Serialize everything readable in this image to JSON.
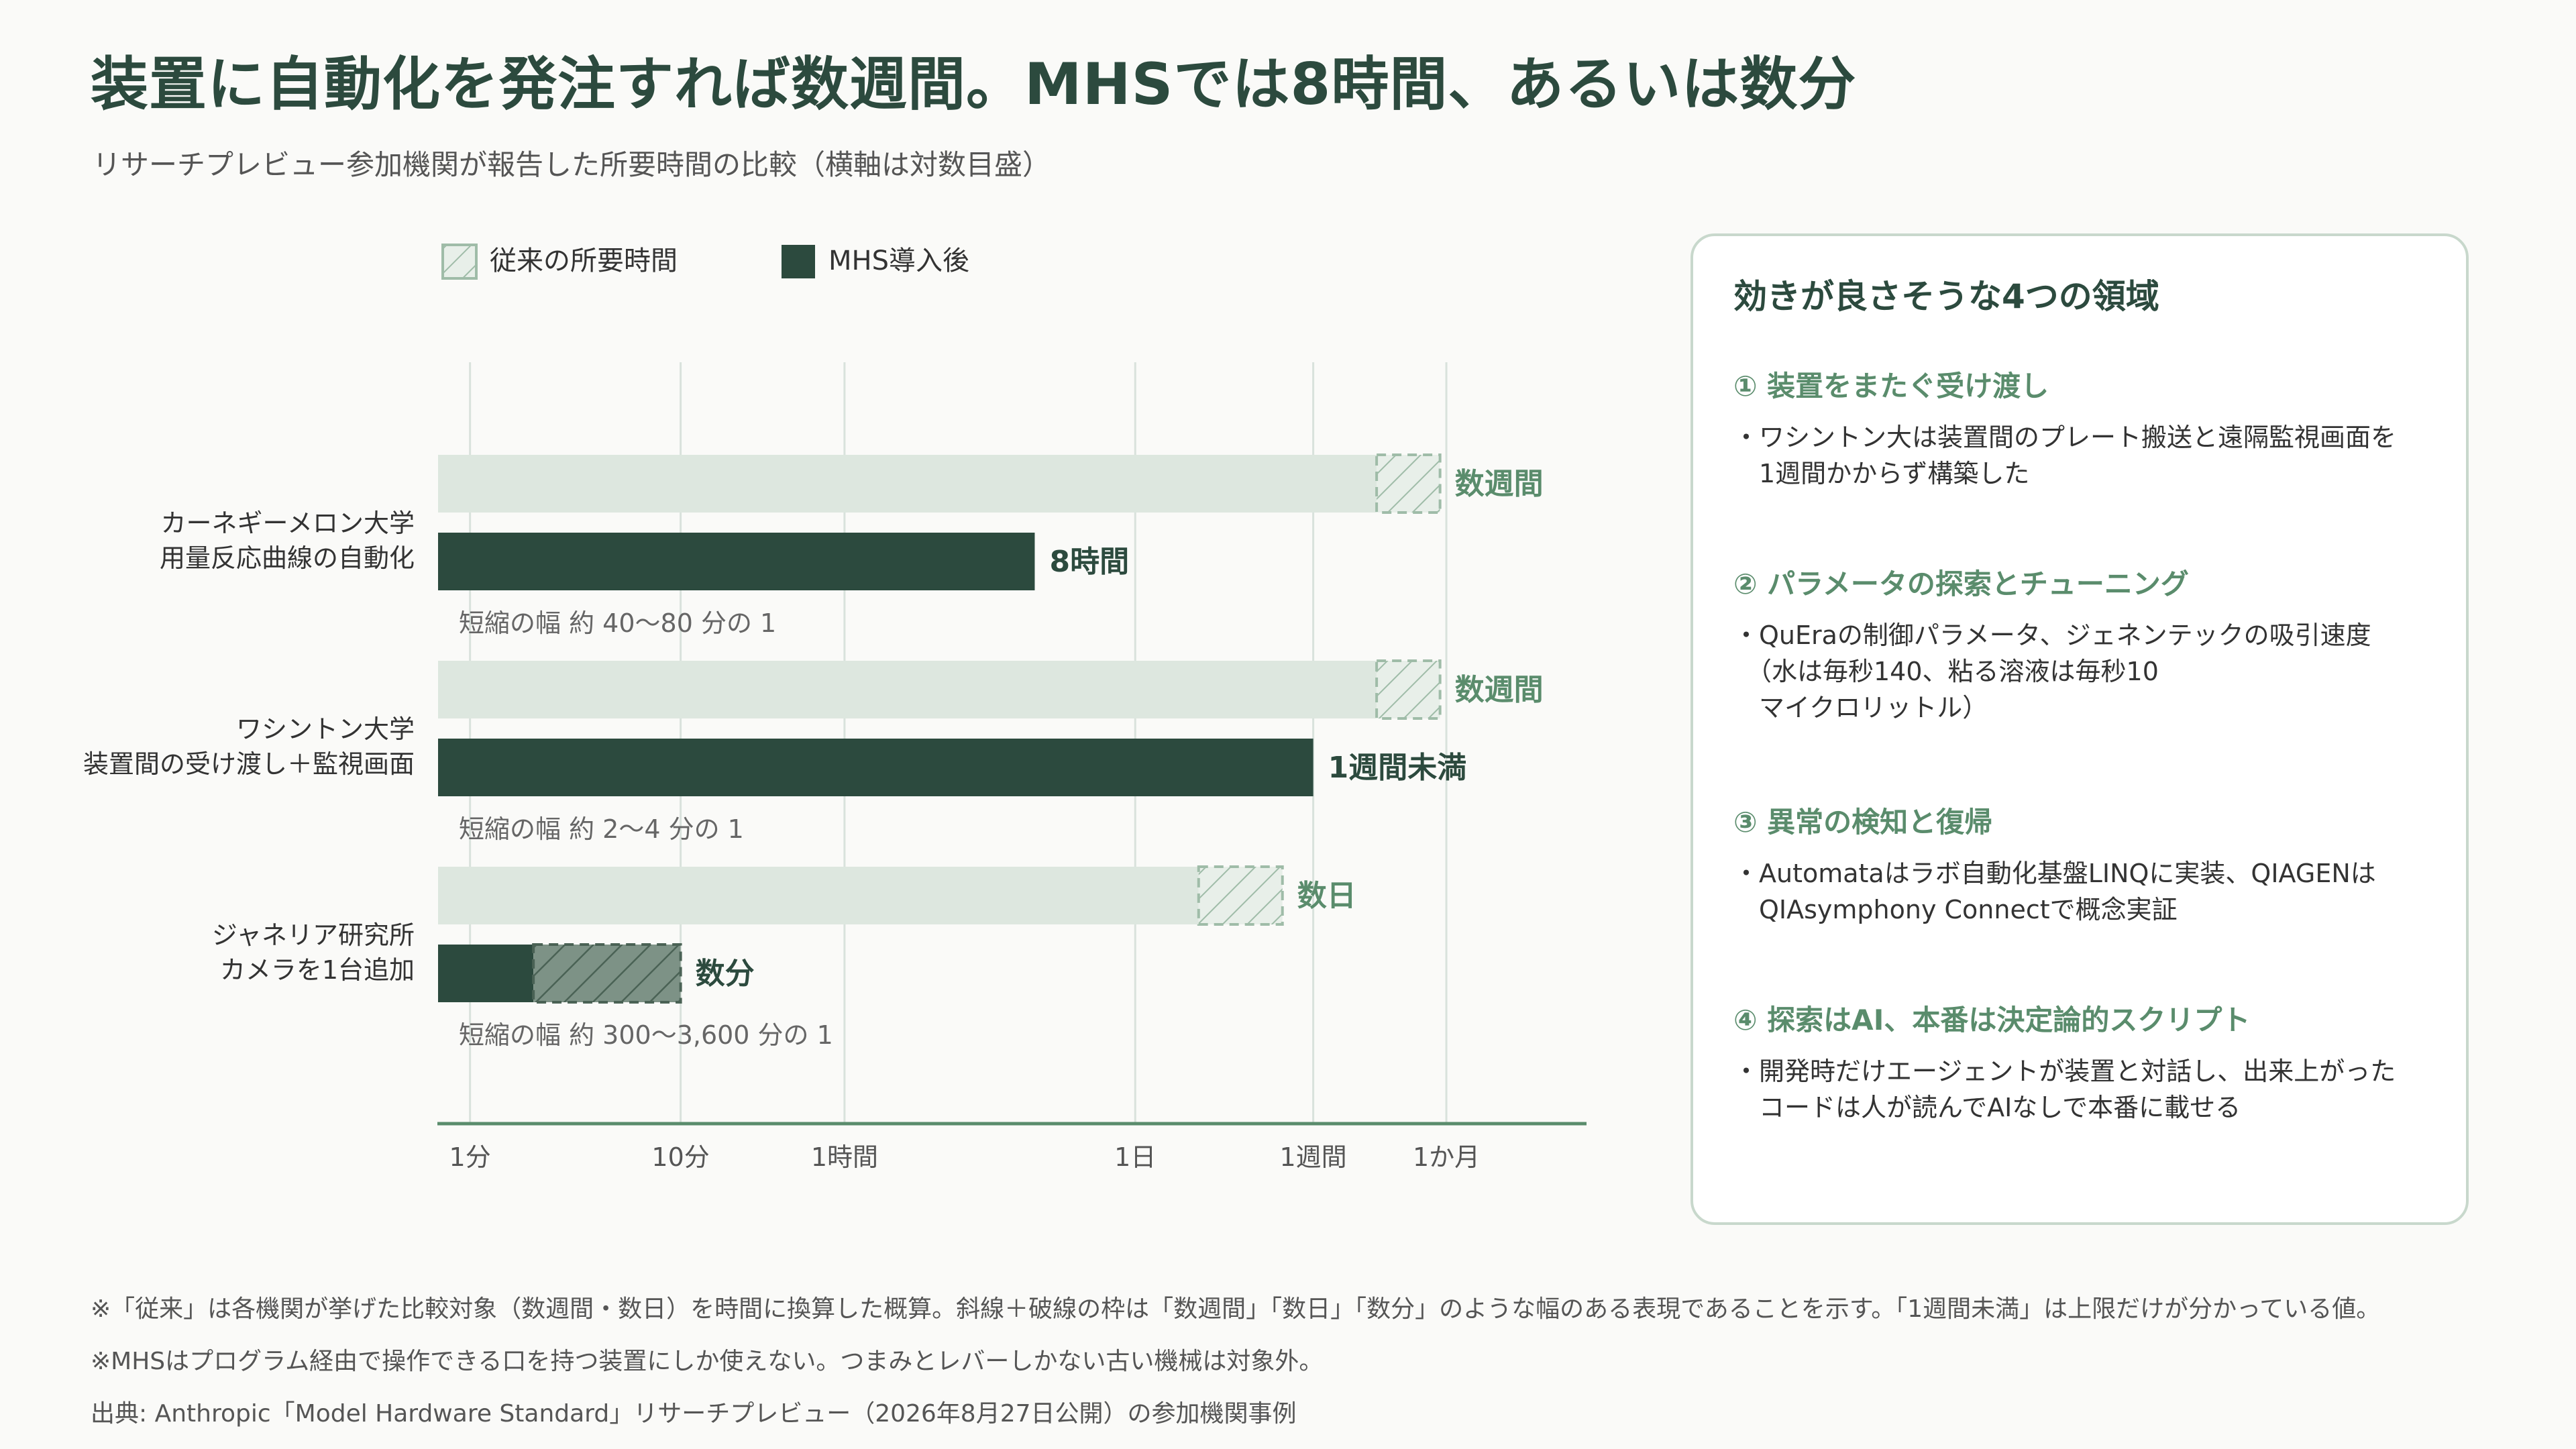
{
  "title": "装置に自動化を発注すれば数週間。MHSでは8時間、あるいは数分",
  "subtitle": "リサーチプレビュー参加機関が報告した所要時間の比較（横軸は対数目盛）",
  "chart_data": {
    "type": "bar",
    "orientation": "horizontal",
    "x_scale": "log",
    "x_unit": "minutes",
    "xlim": [
      0.7,
      200000
    ],
    "grid": true,
    "legend_position": "top-left",
    "legend": {
      "traditional": "従来の所要時間",
      "mhs": "MHS導入後"
    },
    "x_ticks": [
      {
        "label": "1分",
        "value": 1
      },
      {
        "label": "10分",
        "value": 10
      },
      {
        "label": "1時間",
        "value": 60
      },
      {
        "label": "1日",
        "value": 1440
      },
      {
        "label": "1週間",
        "value": 10080
      },
      {
        "label": "1か月",
        "value": 43200
      }
    ],
    "categories": [
      {
        "label_line1": "カーネギーメロン大学",
        "label_line2": "用量反応曲線の自動化",
        "traditional": {
          "min": 20160,
          "max": 40320,
          "label": "数週間"
        },
        "mhs": {
          "value": 480,
          "label": "8時間"
        },
        "reduction": "短縮の幅 約 40〜80 分の 1"
      },
      {
        "label_line1": "ワシントン大学",
        "label_line2": "装置間の受け渡し＋監視画面",
        "traditional": {
          "min": 20160,
          "max": 40320,
          "label": "数週間"
        },
        "mhs": {
          "value": 10080,
          "label": "1週間未満"
        },
        "reduction": "短縮の幅 約 2〜4 分の 1"
      },
      {
        "label_line1": "ジャネリア研究所",
        "label_line2": "カメラを1台追加",
        "traditional": {
          "min": 2880,
          "max": 7200,
          "label": "数日"
        },
        "mhs": {
          "min": 2,
          "max": 10,
          "label": "数分"
        },
        "reduction": "短縮の幅 約 300〜3,600 分の 1"
      }
    ]
  },
  "colors": {
    "title": "#2c4a3e",
    "mhs_bar": "#2c4a3e",
    "traditional_bar": "#dde7df",
    "accent_green": "#5a8c6c",
    "axis": "#5a8c6c",
    "grid": "#d9e2dc"
  },
  "panel": {
    "title": "効きが良さそうな4つの領域",
    "areas": [
      {
        "heading": "① 装置をまたぐ受け渡し",
        "bullet": "・ワシントン大は装置間のプレート搬送と遠隔監視画面を\n　1週間かからず構築した"
      },
      {
        "heading": "② パラメータの探索とチューニング",
        "bullet": "・QuEraの制御パラメータ、ジェネンテックの吸引速度\n　（水は毎秒140、粘る溶液は毎秒10\n　マイクロリットル）"
      },
      {
        "heading": "③ 異常の検知と復帰",
        "bullet": "・Automataはラボ自動化基盤LINQに実装、QIAGENは\n　QIAsymphony Connectで概念実証"
      },
      {
        "heading": "④ 探索はAI、本番は決定論的スクリプト",
        "bullet": "・開発時だけエージェントが装置と対話し、出来上がった\n　コードは人が読んでAIなしで本番に載せる"
      }
    ]
  },
  "notes": {
    "note1": "※「従来」は各機関が挙げた比較対象（数週間・数日）を時間に換算した概算。斜線＋破線の枠は「数週間」「数日」「数分」のような幅のある表現であることを示す。「1週間未満」は上限だけが分かっている値。",
    "note2": "※MHSはプログラム経由で操作できる口を持つ装置にしか使えない。つまみとレバーしかない古い機械は対象外。",
    "source": "出典: Anthropic「Model Hardware Standard」リサーチプレビュー（2026年8月27日公開）の参加機関事例"
  }
}
